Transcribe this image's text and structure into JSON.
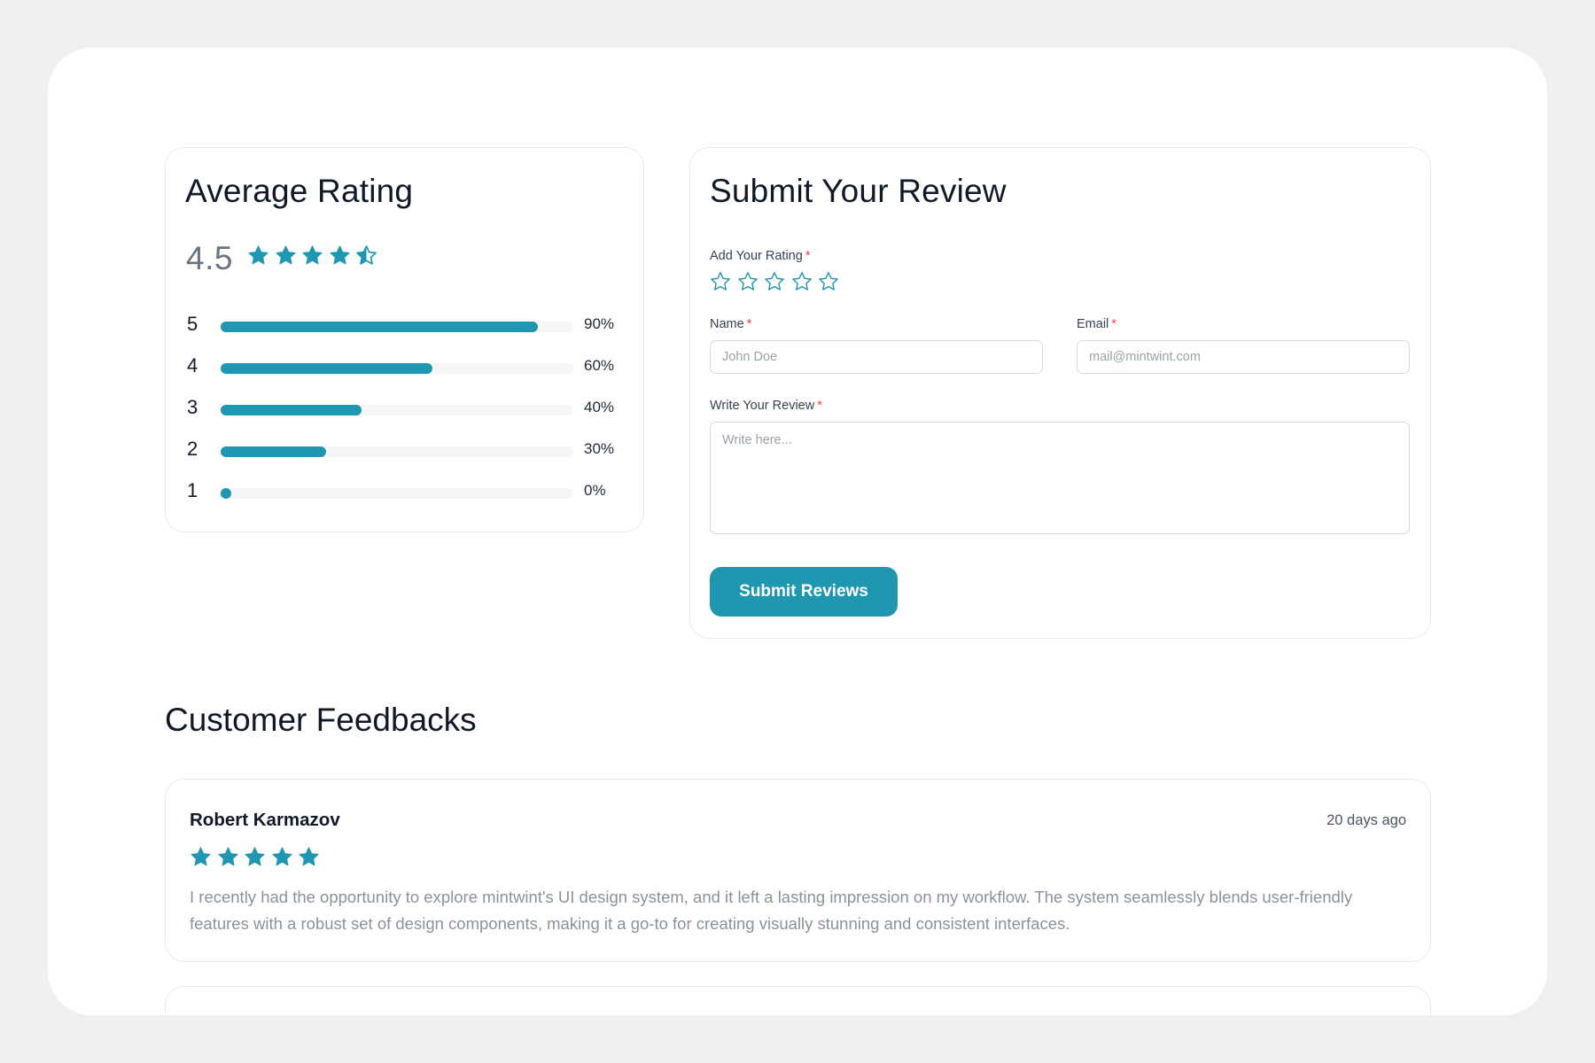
{
  "average": {
    "title": "Average Rating",
    "value": "4.5",
    "stars": 4.5,
    "distribution": [
      {
        "label": "5",
        "percent": 90,
        "percent_text": "90%"
      },
      {
        "label": "4",
        "percent": 60,
        "percent_text": "60%"
      },
      {
        "label": "3",
        "percent": 40,
        "percent_text": "40%"
      },
      {
        "label": "2",
        "percent": 30,
        "percent_text": "30%"
      },
      {
        "label": "1",
        "percent": 0,
        "percent_text": "0%"
      }
    ]
  },
  "form": {
    "title": "Submit Your Review",
    "rating_label": "Add Your Rating",
    "name_label": "Name",
    "name_placeholder": "John Doe",
    "email_label": "Email",
    "email_placeholder": "mail@mintwint.com",
    "review_label": "Write Your Review",
    "review_placeholder": "Write here...",
    "required_mark": "*",
    "submit_label": "Submit Reviews"
  },
  "feedbacks": {
    "title": "Customer Feedbacks",
    "items": [
      {
        "name": "Robert Karmazov",
        "date": "20 days ago",
        "stars": 5,
        "text": "I recently had the opportunity to explore mintwint's UI design system, and it left a lasting impression on my workflow. The system seamlessly blends user-friendly features with a robust set of design components, making it a go-to for creating visually stunning and consistent interfaces."
      }
    ]
  },
  "colors": {
    "accent": "#1f97b1",
    "required": "#ef4444",
    "background": "#f0f0f0"
  },
  "icons": {
    "star_filled": "star-filled-icon",
    "star_half": "star-half-icon",
    "star_outline": "star-outline-icon"
  }
}
